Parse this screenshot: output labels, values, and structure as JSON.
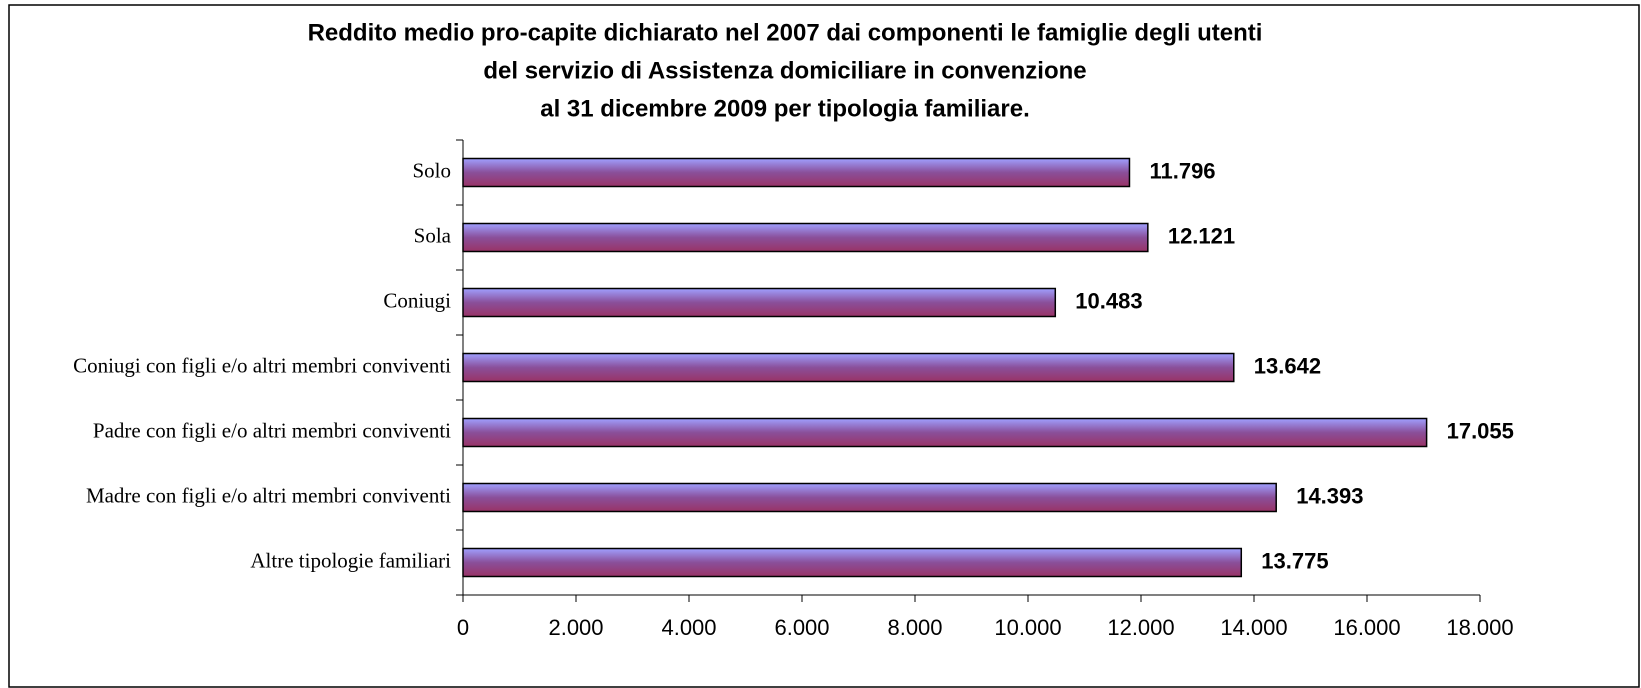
{
  "chart_data": {
    "type": "bar",
    "orientation": "horizontal",
    "title": [
      "Reddito medio pro-capite dichiarato nel 2007 dai componenti le famiglie degli utenti",
      "del servizio di Assistenza domiciliare in convenzione",
      "al 31 dicembre 2009 per tipologia familiare."
    ],
    "categories": [
      "Solo",
      "Sola",
      "Coniugi",
      "Coniugi con figli e/o altri membri conviventi",
      "Padre con figli e/o altri membri conviventi",
      "Madre con figli e/o altri membri conviventi",
      "Altre tipologie familiari"
    ],
    "values": [
      11796,
      12121,
      10483,
      13642,
      17055,
      14393,
      13775
    ],
    "value_labels": [
      "11.796",
      "12.121",
      "10.483",
      "13.642",
      "17.055",
      "14.393",
      "13.775"
    ],
    "colors": [
      "#a0a0ff",
      "#8a4f9a",
      "#993366"
    ],
    "xlim": [
      0,
      18000
    ],
    "xticks": [
      0,
      {
        "value": 2000,
        "label": "2.000"
      },
      {
        "value": 4000,
        "label": "4.000"
      },
      {
        "value": 6000,
        "label": "6.000"
      },
      {
        "value": 8000,
        "label": "8.000"
      },
      {
        "value": 10000,
        "label": "10.000"
      },
      {
        "value": 12000,
        "label": "12.000"
      },
      {
        "value": 14000,
        "label": "14.000"
      },
      {
        "value": 16000,
        "label": "16.000"
      },
      {
        "value": 18000,
        "label": "18.000"
      }
    ],
    "grid": false
  }
}
